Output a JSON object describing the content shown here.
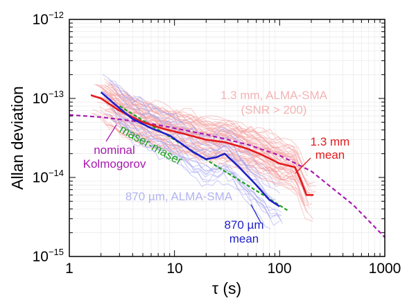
{
  "chart_data": {
    "type": "line",
    "xscale": "log",
    "yscale": "log",
    "xlim": [
      1,
      1000
    ],
    "ylim": [
      1e-15,
      1e-12
    ],
    "xlabel": "τ (s)",
    "ylabel": "Allan deviation",
    "grid": true,
    "x_ticks": [
      {
        "value": 1,
        "label": "1"
      },
      {
        "value": 10,
        "label": "10"
      },
      {
        "value": 100,
        "label": "100"
      },
      {
        "value": 1000,
        "label": "1000"
      }
    ],
    "y_ticks": [
      {
        "value": 1e-15,
        "base": "10",
        "exp": "−15"
      },
      {
        "value": 1e-14,
        "base": "10",
        "exp": "−14"
      },
      {
        "value": 1e-13,
        "base": "10",
        "exp": "−13"
      },
      {
        "value": 1e-12,
        "base": "10",
        "exp": "−12"
      }
    ],
    "series": [
      {
        "name": "1.3 mm mean",
        "color": "#e31a1c",
        "style": "solid",
        "points": [
          [
            1.6,
            1.1e-13
          ],
          [
            2,
            1e-13
          ],
          [
            3,
            7e-14
          ],
          [
            5,
            5e-14
          ],
          [
            8,
            4.1e-14
          ],
          [
            12,
            3.6e-14
          ],
          [
            20,
            3e-14
          ],
          [
            30,
            2.8e-14
          ],
          [
            50,
            2.3e-14
          ],
          [
            70,
            1.9e-14
          ],
          [
            100,
            1.5e-14
          ],
          [
            140,
            1.35e-14
          ],
          [
            160,
            9e-15
          ],
          [
            180,
            6e-15
          ],
          [
            210,
            6e-15
          ]
        ]
      },
      {
        "name": "870 µm mean",
        "color": "#1f1fc8",
        "style": "solid",
        "points": [
          [
            2,
            1.2e-13
          ],
          [
            3,
            7.5e-14
          ],
          [
            4,
            5.5e-14
          ],
          [
            6,
            4.2e-14
          ],
          [
            9,
            3.4e-14
          ],
          [
            12,
            2.6e-14
          ],
          [
            15,
            2.1e-14
          ],
          [
            20,
            1.7e-14
          ],
          [
            25,
            1.8e-14
          ],
          [
            30,
            2e-14
          ],
          [
            40,
            1.4e-14
          ],
          [
            60,
            8e-15
          ],
          [
            80,
            5.2e-15
          ],
          [
            100,
            4.3e-15
          ]
        ]
      },
      {
        "name": "maser-maser",
        "color": "#1aa31a",
        "style": "dashed",
        "points": [
          [
            3,
            8e-14
          ],
          [
            10,
            3e-14
          ],
          [
            30,
            1.2e-14
          ],
          [
            70,
            6e-15
          ],
          [
            120,
            3.8e-15
          ]
        ]
      },
      {
        "name": "nominal Kolmogorov",
        "color": "#a81ab0",
        "style": "dashed",
        "points": [
          [
            1,
            6.2e-14
          ],
          [
            2,
            5.8e-14
          ],
          [
            5,
            5e-14
          ],
          [
            10,
            4.2e-14
          ],
          [
            20,
            3.5e-14
          ],
          [
            50,
            2.6e-14
          ],
          [
            100,
            1.9e-14
          ],
          [
            200,
            1.2e-14
          ],
          [
            500,
            4.5e-15
          ],
          [
            1000,
            1.75e-15
          ]
        ]
      }
    ],
    "background_series": [
      {
        "name": "1.3 mm, ALMA-SMA (SNR > 200)",
        "color": "#f4a0a0",
        "x_range": [
          1.6,
          230
        ],
        "count": 60
      },
      {
        "name": "870 µm, ALMA-SMA",
        "color": "#a0a0f0",
        "x_range": [
          2,
          110
        ],
        "count": 20
      }
    ],
    "annotations": [
      {
        "id": "bg13-line1",
        "text": "1.3 mm, ALMA-SMA",
        "color": "#f4b3b3"
      },
      {
        "id": "bg13-line2",
        "text": "(SNR > 200)",
        "color": "#f4b3b3"
      },
      {
        "id": "mean13-line1",
        "text": "1.3 mm",
        "color": "#e31a1c"
      },
      {
        "id": "mean13-line2",
        "text": "mean",
        "color": "#e31a1c"
      },
      {
        "id": "maser",
        "text": "maser-maser",
        "color": "#1aa31a"
      },
      {
        "id": "kolmo-line1",
        "text": "nominal",
        "color": "#a81ab0"
      },
      {
        "id": "kolmo-line2",
        "text": "Kolmogorov",
        "color": "#a81ab0"
      },
      {
        "id": "bg870",
        "text": "870 µm, ALMA-SMA",
        "color": "#b3b3f2"
      },
      {
        "id": "mean870-line1",
        "text": "870 µm",
        "color": "#1f1fc8"
      },
      {
        "id": "mean870-line2",
        "text": "mean",
        "color": "#1f1fc8"
      }
    ]
  }
}
